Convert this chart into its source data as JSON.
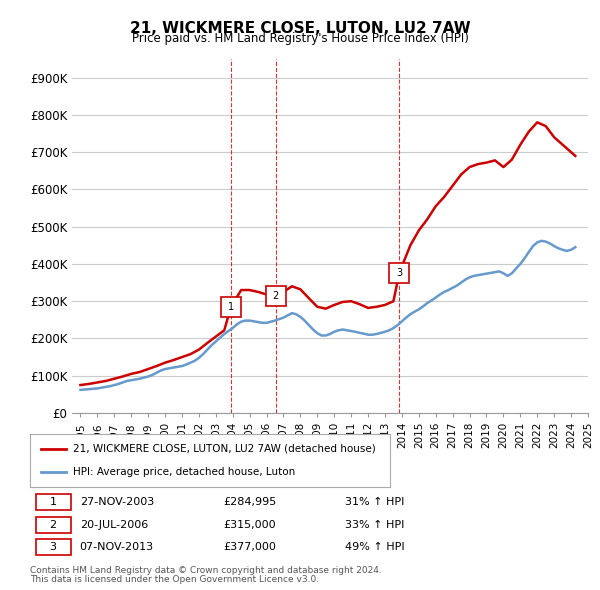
{
  "title": "21, WICKMERE CLOSE, LUTON, LU2 7AW",
  "subtitle": "Price paid vs. HM Land Registry's House Price Index (HPI)",
  "property_label": "21, WICKMERE CLOSE, LUTON, LU2 7AW (detached house)",
  "hpi_label": "HPI: Average price, detached house, Luton",
  "footnote1": "Contains HM Land Registry data © Crown copyright and database right 2024.",
  "footnote2": "This data is licensed under the Open Government Licence v3.0.",
  "transactions": [
    {
      "num": 1,
      "date": "27-NOV-2003",
      "price": 284995,
      "pct": "31% ↑ HPI",
      "x": 2003.9
    },
    {
      "num": 2,
      "date": "20-JUL-2006",
      "price": 315000,
      "pct": "33% ↑ HPI",
      "x": 2006.55
    },
    {
      "num": 3,
      "date": "07-NOV-2013",
      "price": 377000,
      "pct": "49% ↑ HPI",
      "x": 2013.85
    }
  ],
  "property_color": "#cc0000",
  "hpi_color": "#6699cc",
  "vline_color": "#cc0000",
  "background_color": "#ffffff",
  "grid_color": "#cccccc",
  "ylim": [
    0,
    950000
  ],
  "yticks": [
    0,
    100000,
    200000,
    300000,
    400000,
    500000,
    600000,
    700000,
    800000,
    900000
  ],
  "ytick_labels": [
    "£0",
    "£100K",
    "£200K",
    "£300K",
    "£400K",
    "£500K",
    "£600K",
    "£700K",
    "£800K",
    "£900K"
  ],
  "hpi_data": {
    "years": [
      1995.0,
      1995.25,
      1995.5,
      1995.75,
      1996.0,
      1996.25,
      1996.5,
      1996.75,
      1997.0,
      1997.25,
      1997.5,
      1997.75,
      1998.0,
      1998.25,
      1998.5,
      1998.75,
      1999.0,
      1999.25,
      1999.5,
      1999.75,
      2000.0,
      2000.25,
      2000.5,
      2000.75,
      2001.0,
      2001.25,
      2001.5,
      2001.75,
      2002.0,
      2002.25,
      2002.5,
      2002.75,
      2003.0,
      2003.25,
      2003.5,
      2003.75,
      2004.0,
      2004.25,
      2004.5,
      2004.75,
      2005.0,
      2005.25,
      2005.5,
      2005.75,
      2006.0,
      2006.25,
      2006.5,
      2006.75,
      2007.0,
      2007.25,
      2007.5,
      2007.75,
      2008.0,
      2008.25,
      2008.5,
      2008.75,
      2009.0,
      2009.25,
      2009.5,
      2009.75,
      2010.0,
      2010.25,
      2010.5,
      2010.75,
      2011.0,
      2011.25,
      2011.5,
      2011.75,
      2012.0,
      2012.25,
      2012.5,
      2012.75,
      2013.0,
      2013.25,
      2013.5,
      2013.75,
      2014.0,
      2014.25,
      2014.5,
      2014.75,
      2015.0,
      2015.25,
      2015.5,
      2015.75,
      2016.0,
      2016.25,
      2016.5,
      2016.75,
      2017.0,
      2017.25,
      2017.5,
      2017.75,
      2018.0,
      2018.25,
      2018.5,
      2018.75,
      2019.0,
      2019.25,
      2019.5,
      2019.75,
      2020.0,
      2020.25,
      2020.5,
      2020.75,
      2021.0,
      2021.25,
      2021.5,
      2021.75,
      2022.0,
      2022.25,
      2022.5,
      2022.75,
      2023.0,
      2023.25,
      2023.5,
      2023.75,
      2024.0,
      2024.25
    ],
    "values": [
      62000,
      63000,
      64000,
      65000,
      66000,
      68000,
      70000,
      72000,
      75000,
      78000,
      82000,
      86000,
      88000,
      90000,
      92000,
      95000,
      98000,
      102000,
      108000,
      114000,
      118000,
      120000,
      122000,
      124000,
      126000,
      130000,
      135000,
      140000,
      148000,
      158000,
      170000,
      182000,
      192000,
      202000,
      212000,
      220000,
      228000,
      238000,
      245000,
      248000,
      248000,
      246000,
      244000,
      242000,
      242000,
      245000,
      248000,
      252000,
      256000,
      262000,
      268000,
      265000,
      258000,
      248000,
      236000,
      224000,
      214000,
      208000,
      208000,
      212000,
      218000,
      222000,
      224000,
      222000,
      220000,
      218000,
      215000,
      213000,
      210000,
      210000,
      212000,
      215000,
      218000,
      222000,
      228000,
      236000,
      246000,
      256000,
      265000,
      272000,
      278000,
      286000,
      295000,
      302000,
      310000,
      318000,
      325000,
      330000,
      336000,
      342000,
      350000,
      358000,
      364000,
      368000,
      370000,
      372000,
      374000,
      376000,
      378000,
      380000,
      375000,
      368000,
      375000,
      388000,
      400000,
      415000,
      432000,
      448000,
      458000,
      462000,
      460000,
      455000,
      448000,
      442000,
      438000,
      435000,
      438000,
      445000
    ]
  },
  "property_data": {
    "years": [
      1995.0,
      1995.5,
      1996.0,
      1996.5,
      1997.0,
      1997.5,
      1998.0,
      1998.5,
      1999.0,
      1999.5,
      2000.0,
      2000.5,
      2001.0,
      2001.5,
      2002.0,
      2002.5,
      2003.0,
      2003.5,
      2003.9,
      2004.5,
      2005.0,
      2005.5,
      2006.0,
      2006.55,
      2007.0,
      2007.5,
      2008.0,
      2008.5,
      2009.0,
      2009.5,
      2010.0,
      2010.5,
      2011.0,
      2011.5,
      2012.0,
      2012.5,
      2013.0,
      2013.5,
      2013.85,
      2014.5,
      2015.0,
      2015.5,
      2016.0,
      2016.5,
      2017.0,
      2017.5,
      2018.0,
      2018.5,
      2019.0,
      2019.5,
      2020.0,
      2020.5,
      2021.0,
      2021.5,
      2022.0,
      2022.5,
      2023.0,
      2023.5,
      2024.0,
      2024.25
    ],
    "values": [
      75000,
      78000,
      82000,
      86000,
      92000,
      98000,
      105000,
      110000,
      118000,
      126000,
      135000,
      142000,
      150000,
      158000,
      170000,
      188000,
      205000,
      222000,
      284995,
      330000,
      330000,
      325000,
      318000,
      315000,
      325000,
      340000,
      332000,
      308000,
      285000,
      280000,
      290000,
      298000,
      300000,
      292000,
      282000,
      285000,
      290000,
      300000,
      377000,
      450000,
      490000,
      520000,
      555000,
      580000,
      610000,
      640000,
      660000,
      668000,
      672000,
      678000,
      660000,
      680000,
      720000,
      755000,
      780000,
      770000,
      740000,
      720000,
      700000,
      690000
    ]
  }
}
